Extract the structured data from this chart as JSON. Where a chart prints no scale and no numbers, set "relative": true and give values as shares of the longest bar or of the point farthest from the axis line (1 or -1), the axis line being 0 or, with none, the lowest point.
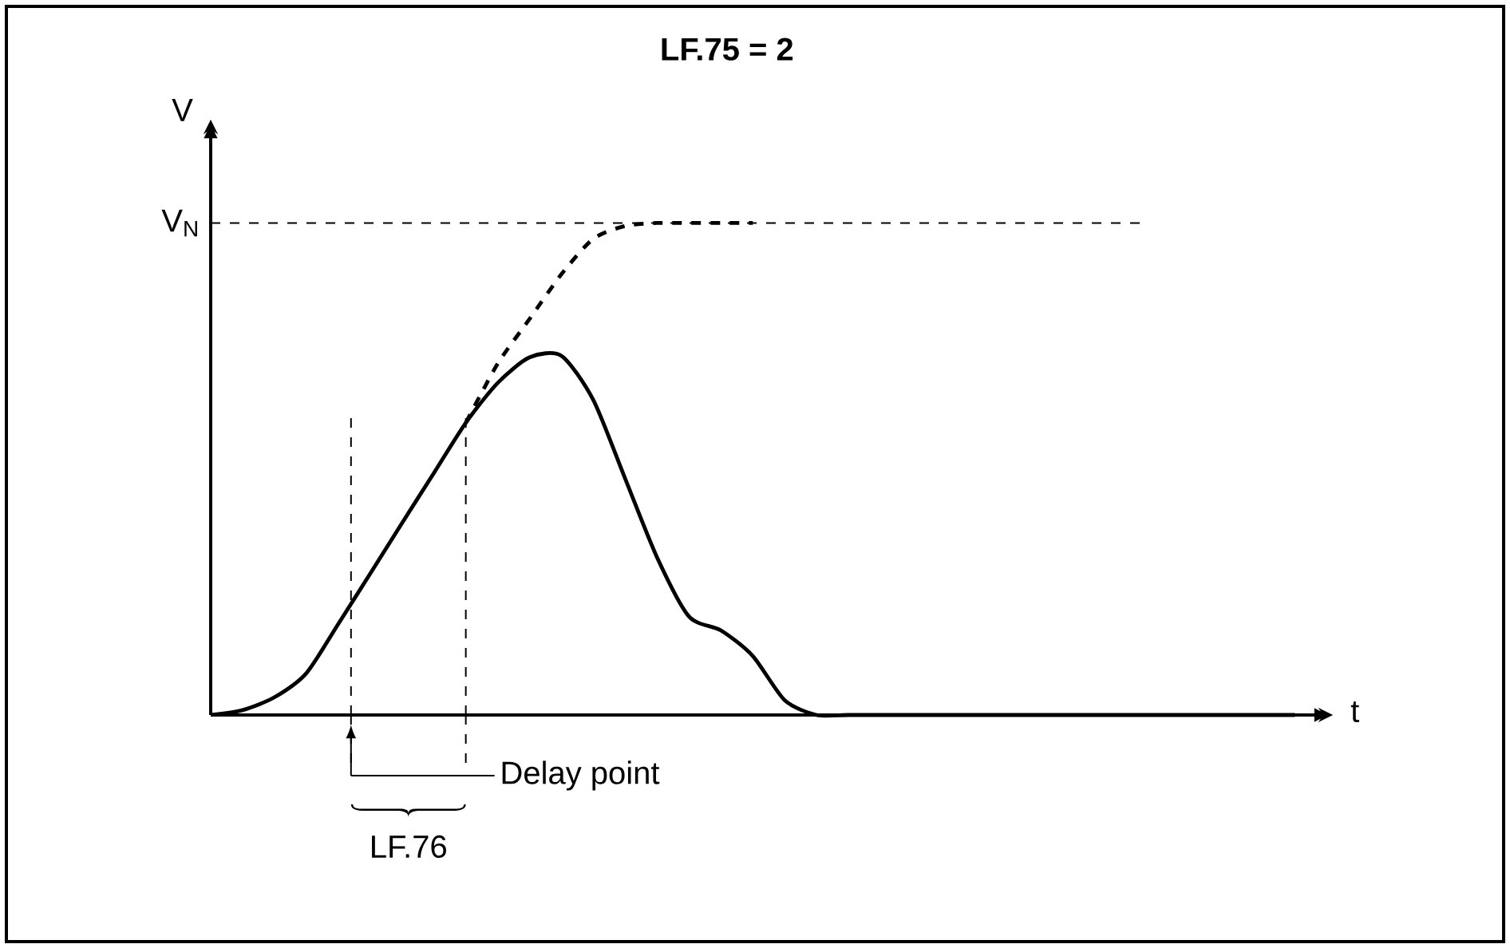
{
  "chart_data": {
    "type": "line",
    "title": "LF.75 = 2",
    "xlabel": "t",
    "ylabel": "V",
    "relative": true,
    "marker": "none",
    "categories": [
      null,
      null,
      null,
      null,
      null,
      null,
      null,
      null,
      null,
      null,
      null,
      null,
      null,
      null,
      null,
      null,
      null,
      null,
      null,
      null,
      null,
      null,
      null,
      null,
      null,
      null,
      null,
      null,
      null,
      null,
      null,
      null,
      null,
      null,
      null
    ],
    "series": [
      {
        "color": "#000000",
        "line_style": "solid",
        "values": [
          0,
          0.01,
          0.036,
          0.085,
          0.185,
          0.287,
          0.39,
          0.492,
          0.594,
          0.675,
          0.727,
          0.73,
          0.64,
          0.48,
          0.32,
          0.2,
          0.172,
          0.12,
          0.03,
          0,
          0,
          0,
          0,
          0,
          0,
          0,
          0,
          0,
          0,
          0,
          0,
          0,
          0,
          0,
          0
        ]
      },
      {
        "color": "#000000",
        "line_style": "dashed",
        "values": [
          null,
          null,
          null,
          null,
          null,
          null,
          null,
          null,
          0.594,
          0.714,
          0.805,
          0.896,
          0.968,
          0.994,
          1,
          1,
          1,
          1,
          null,
          null,
          null,
          null,
          null,
          null,
          null,
          null,
          null,
          null,
          null,
          null,
          null,
          null,
          null,
          null,
          null
        ]
      }
    ],
    "ref_lines": [
      {
        "axis": "y",
        "value": 1,
        "label": "V$_{N}$",
        "line_style": "dashed",
        "color": "#000000"
      }
    ],
    "annotations": [
      "Delay point",
      "LF.76"
    ]
  }
}
